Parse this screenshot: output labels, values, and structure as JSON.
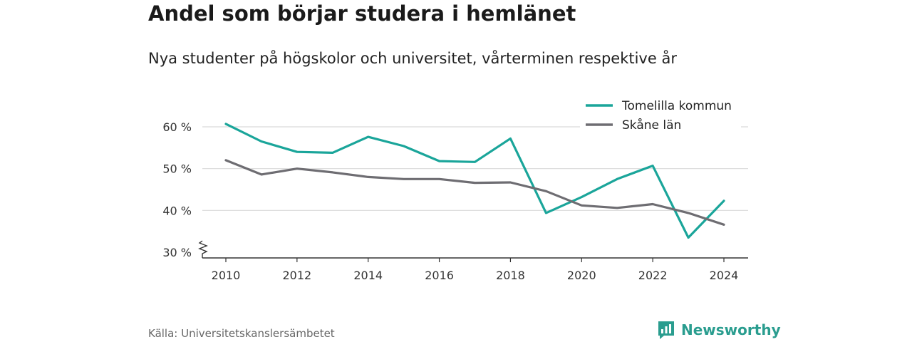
{
  "title": "Andel som börjar studera i hemlänet",
  "subtitle": "Nya studenter på högskolor och universitet, vårterminen respektive år",
  "source": "Källa: Universitetskanslersämbetet",
  "brand": {
    "name": "Newsworthy",
    "icon": "newsworthy-logo-icon",
    "color": "#2a9d8f"
  },
  "chart_data": {
    "type": "line",
    "x": [
      2010,
      2011,
      2012,
      2013,
      2014,
      2015,
      2016,
      2017,
      2018,
      2019,
      2020,
      2021,
      2022,
      2023,
      2024
    ],
    "x_ticks": [
      2010,
      2012,
      2014,
      2016,
      2018,
      2020,
      2022,
      2024
    ],
    "y_ticks": [
      30,
      40,
      50,
      60
    ],
    "y_tick_labels": [
      "30 %",
      "40 %",
      "50 %",
      "60 %"
    ],
    "ylim": [
      30,
      63
    ],
    "y_axis_break": true,
    "grid": true,
    "legend_position": "top-right",
    "series": [
      {
        "name": "Tomelilla kommun",
        "color": "#1aa59a",
        "values": [
          60.7,
          56.5,
          54.0,
          53.8,
          57.6,
          55.4,
          51.8,
          51.6,
          57.2,
          39.4,
          43.2,
          47.5,
          50.7,
          33.5,
          42.3
        ]
      },
      {
        "name": "Skåne län",
        "color": "#6e6d72",
        "values": [
          52.0,
          48.6,
          50.0,
          49.1,
          48.0,
          47.5,
          47.5,
          46.6,
          46.7,
          44.6,
          41.2,
          40.6,
          41.5,
          39.4,
          36.6
        ]
      }
    ]
  }
}
